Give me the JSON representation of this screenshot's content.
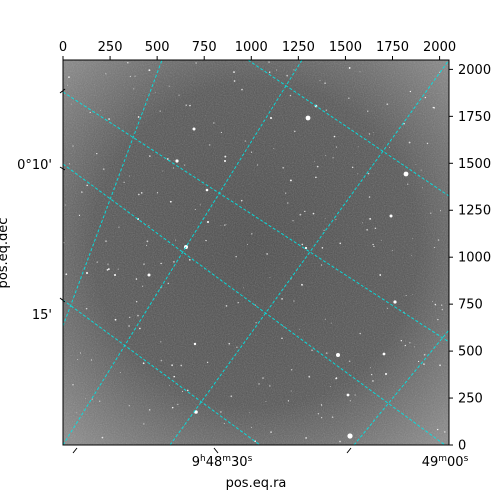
{
  "chart_data": {
    "type": "image",
    "title": "",
    "image": {
      "description_colors": {
        "background": "#4a4a4a",
        "stars": "#ffffff"
      }
    },
    "pixel_axes": {
      "x_ticks": [
        0,
        250,
        500,
        750,
        1000,
        1250,
        1500,
        1750,
        2000
      ],
      "y_ticks": [
        0,
        250,
        500,
        750,
        1000,
        1250,
        1500,
        1750,
        2000
      ],
      "x_range": [
        0,
        2050
      ],
      "y_range": [
        0,
        2050
      ]
    },
    "world_axes": {
      "xlabel": "pos.eq.ra",
      "ylabel": "pos.eq.dec",
      "ra_tick_labels": [
        {
          "h": "9",
          "m": "48",
          "s": "30"
        },
        {
          "h": "",
          "m": "49",
          "s": "00"
        }
      ],
      "dec_tick_labels": [
        "0°10'",
        "15'"
      ]
    },
    "grid": {
      "on": true,
      "color": "#00e5e5",
      "style": "dashed"
    }
  }
}
